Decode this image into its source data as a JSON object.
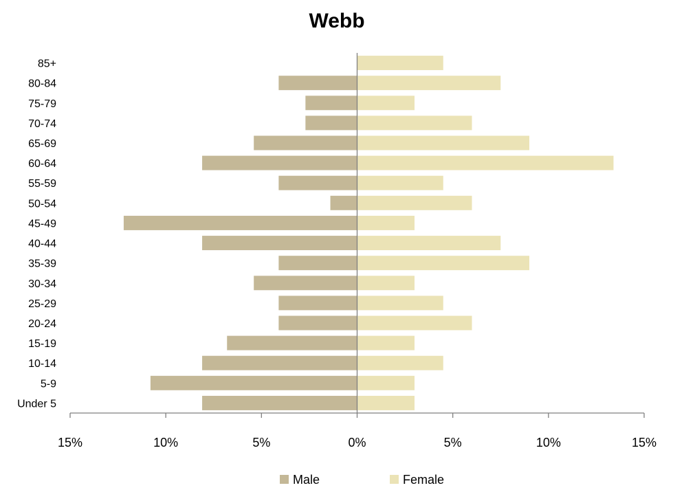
{
  "chart_data": {
    "type": "bar",
    "orientation": "horizontal",
    "title": "Webb",
    "categories": [
      "85+",
      "80-84",
      "75-79",
      "70-74",
      "65-69",
      "60-64",
      "55-59",
      "50-54",
      "45-49",
      "40-44",
      "35-39",
      "30-34",
      "25-29",
      "20-24",
      "15-19",
      "10-14",
      "5-9",
      "Under 5"
    ],
    "series": [
      {
        "name": "Male",
        "color": "#c4b897",
        "values": [
          0,
          4.1,
          2.7,
          2.7,
          5.4,
          8.1,
          4.1,
          1.4,
          12.2,
          8.1,
          4.1,
          5.4,
          4.1,
          4.1,
          6.8,
          8.1,
          10.8,
          8.1
        ]
      },
      {
        "name": "Female",
        "color": "#ebe3b6",
        "values": [
          4.5,
          7.5,
          3.0,
          6.0,
          9.0,
          13.4,
          4.5,
          6.0,
          3.0,
          7.5,
          9.0,
          3.0,
          4.5,
          6.0,
          3.0,
          4.5,
          3.0,
          3.0
        ]
      }
    ],
    "xlim": [
      -15,
      15
    ],
    "x_ticks": [
      -15,
      -10,
      -5,
      0,
      5,
      10,
      15
    ],
    "x_tick_labels": [
      "15%",
      "10%",
      "5%",
      "0%",
      "5%",
      "10%",
      "15%"
    ],
    "xlabel": "",
    "ylabel": "",
    "grid": false,
    "legend_position": "bottom"
  }
}
